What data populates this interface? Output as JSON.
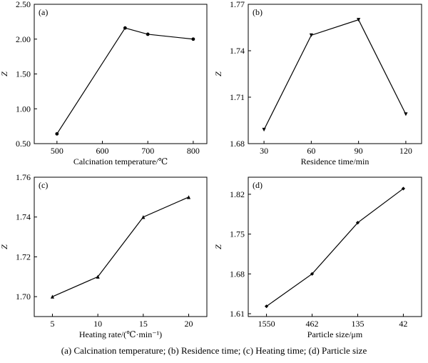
{
  "caption": "(a) Calcination temperature; (b) Residence time; (c) Heating time; (d) Particle size",
  "chart_data": [
    {
      "type": "line",
      "panel_label": "(a)",
      "xlabel": "Calcination temperature/℃",
      "ylabel": "Z",
      "x_ticks": [
        "500",
        "600",
        "700",
        "800"
      ],
      "x_tick_values": [
        500,
        600,
        700,
        800
      ],
      "xlim": [
        450,
        830
      ],
      "y_ticks": [
        "0.50",
        "1.00",
        "1.50",
        "2.00",
        "2.50"
      ],
      "y_tick_values": [
        0.5,
        1.0,
        1.5,
        2.0,
        2.5
      ],
      "ylim": [
        0.5,
        2.5
      ],
      "marker": "circle",
      "x": [
        500,
        650,
        700,
        800
      ],
      "y": [
        0.64,
        2.16,
        2.07,
        2.0
      ]
    },
    {
      "type": "line",
      "panel_label": "(b)",
      "xlabel": "Residence time/min",
      "ylabel": "Z",
      "x_ticks": [
        "30",
        "60",
        "90",
        "120"
      ],
      "x_tick_values": [
        30,
        60,
        90,
        120
      ],
      "xlim": [
        20,
        130
      ],
      "y_ticks": [
        "1.68",
        "1.71",
        "1.74",
        "1.77"
      ],
      "y_tick_values": [
        1.68,
        1.71,
        1.74,
        1.77
      ],
      "ylim": [
        1.68,
        1.77
      ],
      "marker": "triangle-down",
      "x": [
        30,
        60,
        90,
        120
      ],
      "y": [
        1.689,
        1.75,
        1.76,
        1.699
      ]
    },
    {
      "type": "line",
      "panel_label": "(c)",
      "xlabel": "Heating rate/(℃·min⁻¹)",
      "ylabel": "Z",
      "x_ticks": [
        "5",
        "10",
        "15",
        "20"
      ],
      "x_tick_values": [
        5,
        10,
        15,
        20
      ],
      "xlim": [
        3,
        22
      ],
      "y_ticks": [
        "1.70",
        "1.72",
        "1.74",
        "1.76"
      ],
      "y_tick_values": [
        1.7,
        1.72,
        1.74,
        1.76
      ],
      "ylim": [
        1.69,
        1.76
      ],
      "marker": "triangle-up",
      "x": [
        5,
        10,
        15,
        20
      ],
      "y": [
        1.7,
        1.71,
        1.74,
        1.75
      ]
    },
    {
      "type": "line",
      "panel_label": "(d)",
      "xlabel": "Particle size/μm",
      "ylabel": "Z",
      "x_ticks": [
        "1550",
        "462",
        "135",
        "42"
      ],
      "x_tick_values": [
        1,
        2,
        3,
        4
      ],
      "xlim": [
        0.6,
        4.4
      ],
      "y_ticks": [
        "1.61",
        "1.68",
        "1.75",
        "1.82"
      ],
      "y_tick_values": [
        1.61,
        1.68,
        1.75,
        1.82
      ],
      "ylim": [
        1.605,
        1.85
      ],
      "marker": "diamond",
      "x": [
        "1550",
        "462",
        "135",
        "42"
      ],
      "y": [
        1.623,
        1.68,
        1.77,
        1.83
      ]
    }
  ]
}
